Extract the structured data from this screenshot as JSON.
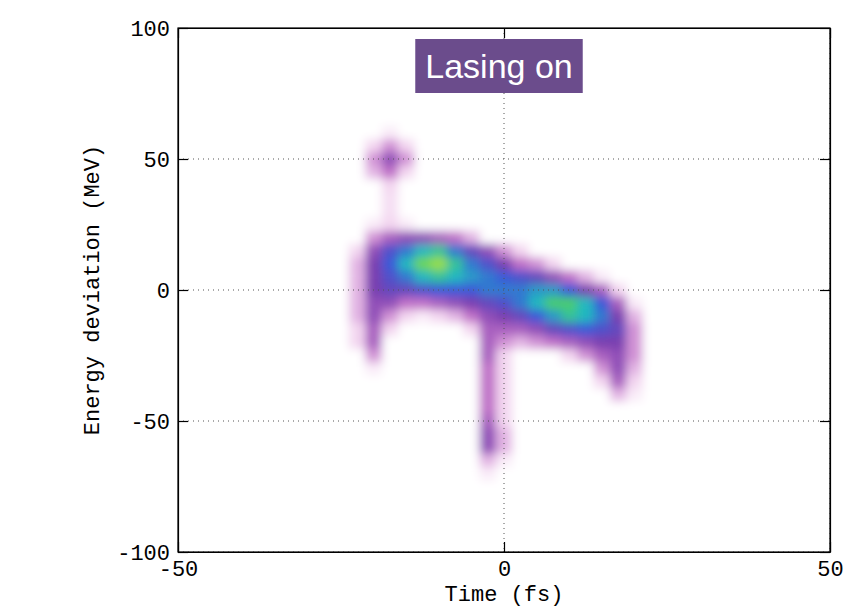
{
  "chart_data": {
    "type": "heatmap",
    "annotation": "Lasing on",
    "xlabel": "Time (fs)",
    "ylabel": "Energy deviation (MeV)",
    "xlim": [
      -50,
      50
    ],
    "ylim": [
      -100,
      100
    ],
    "xticks": [
      -50,
      0,
      50
    ],
    "yticks": [
      -100,
      -50,
      0,
      50,
      100
    ],
    "grid": true,
    "zlim": [
      0,
      1
    ],
    "x": [
      -25,
      -22.5,
      -20,
      -17.5,
      -15,
      -12.5,
      -10,
      -7.5,
      -5,
      -2.5,
      0,
      2.5,
      5,
      7.5,
      10,
      12.5,
      15,
      17.5,
      20,
      22.5,
      25
    ],
    "y": [
      60,
      55,
      50,
      45,
      40,
      35,
      30,
      25,
      20,
      15,
      10,
      5,
      0,
      -5,
      -10,
      -15,
      -20,
      -25,
      -30,
      -35,
      -40,
      -45,
      -50,
      -55,
      -60,
      -65,
      -70
    ],
    "z": [
      [
        0,
        0,
        0,
        0.05,
        0,
        0,
        0,
        0,
        0,
        0,
        0,
        0,
        0,
        0,
        0,
        0,
        0,
        0,
        0,
        0,
        0
      ],
      [
        0,
        0,
        0.1,
        0.2,
        0.1,
        0,
        0,
        0,
        0,
        0,
        0,
        0,
        0,
        0,
        0,
        0,
        0,
        0,
        0,
        0,
        0
      ],
      [
        0,
        0,
        0.2,
        0.35,
        0.2,
        0,
        0,
        0,
        0,
        0,
        0,
        0,
        0,
        0,
        0,
        0,
        0,
        0,
        0,
        0,
        0
      ],
      [
        0,
        0,
        0.15,
        0.25,
        0.1,
        0,
        0,
        0,
        0,
        0,
        0,
        0,
        0,
        0,
        0,
        0,
        0,
        0,
        0,
        0,
        0
      ],
      [
        0,
        0,
        0,
        0.1,
        0,
        0,
        0,
        0,
        0,
        0,
        0,
        0,
        0,
        0,
        0,
        0,
        0,
        0,
        0,
        0,
        0
      ],
      [
        0,
        0,
        0,
        0.08,
        0,
        0,
        0,
        0,
        0,
        0,
        0,
        0,
        0,
        0,
        0,
        0,
        0,
        0,
        0,
        0,
        0
      ],
      [
        0,
        0,
        0,
        0.08,
        0,
        0,
        0,
        0,
        0,
        0,
        0,
        0,
        0,
        0,
        0,
        0,
        0,
        0,
        0,
        0,
        0
      ],
      [
        0,
        0,
        0.05,
        0.1,
        0.05,
        0,
        0,
        0,
        0,
        0,
        0,
        0,
        0,
        0,
        0,
        0,
        0,
        0,
        0,
        0,
        0
      ],
      [
        0,
        0,
        0.2,
        0.3,
        0.35,
        0.35,
        0.3,
        0.25,
        0.15,
        0,
        0,
        0,
        0,
        0,
        0,
        0,
        0,
        0,
        0,
        0,
        0
      ],
      [
        0,
        0.1,
        0.35,
        0.5,
        0.6,
        0.7,
        0.75,
        0.6,
        0.45,
        0.35,
        0.2,
        0.1,
        0,
        0,
        0,
        0,
        0,
        0,
        0,
        0,
        0
      ],
      [
        0,
        0.15,
        0.4,
        0.55,
        0.7,
        0.85,
        0.9,
        0.75,
        0.6,
        0.5,
        0.4,
        0.25,
        0.2,
        0.1,
        0,
        0,
        0,
        0,
        0,
        0,
        0
      ],
      [
        0,
        0.15,
        0.4,
        0.5,
        0.6,
        0.7,
        0.75,
        0.7,
        0.65,
        0.6,
        0.55,
        0.5,
        0.45,
        0.35,
        0.25,
        0.15,
        0.05,
        0,
        0,
        0,
        0
      ],
      [
        0,
        0.15,
        0.4,
        0.45,
        0.45,
        0.5,
        0.55,
        0.55,
        0.55,
        0.6,
        0.6,
        0.6,
        0.65,
        0.65,
        0.55,
        0.4,
        0.3,
        0.1,
        0,
        0,
        0
      ],
      [
        0,
        0.15,
        0.35,
        0.35,
        0.25,
        0.25,
        0.3,
        0.35,
        0.4,
        0.45,
        0.5,
        0.6,
        0.7,
        0.8,
        0.8,
        0.7,
        0.55,
        0.3,
        0.05,
        0,
        0
      ],
      [
        0,
        0.15,
        0.35,
        0.2,
        0.1,
        0.05,
        0.1,
        0.15,
        0.25,
        0.35,
        0.4,
        0.45,
        0.55,
        0.65,
        0.75,
        0.7,
        0.6,
        0.4,
        0.15,
        0,
        0
      ],
      [
        0,
        0.1,
        0.3,
        0.1,
        0,
        0,
        0,
        0,
        0.1,
        0.3,
        0.3,
        0.3,
        0.35,
        0.45,
        0.5,
        0.55,
        0.5,
        0.45,
        0.2,
        0,
        0
      ],
      [
        0,
        0.1,
        0.3,
        0,
        0,
        0,
        0,
        0,
        0,
        0.3,
        0.2,
        0.15,
        0.2,
        0.25,
        0.3,
        0.35,
        0.4,
        0.4,
        0.2,
        0,
        0
      ],
      [
        0,
        0,
        0.2,
        0,
        0,
        0,
        0,
        0,
        0,
        0.3,
        0.1,
        0,
        0,
        0,
        0.1,
        0.2,
        0.3,
        0.35,
        0.2,
        0,
        0
      ],
      [
        0,
        0,
        0.05,
        0,
        0,
        0,
        0,
        0,
        0,
        0.25,
        0.1,
        0,
        0,
        0,
        0,
        0,
        0.2,
        0.35,
        0.15,
        0,
        0
      ],
      [
        0,
        0,
        0,
        0,
        0,
        0,
        0,
        0,
        0,
        0.25,
        0.1,
        0,
        0,
        0,
        0,
        0,
        0.1,
        0.3,
        0.1,
        0,
        0
      ],
      [
        0,
        0,
        0,
        0,
        0,
        0,
        0,
        0,
        0,
        0.25,
        0.1,
        0,
        0,
        0,
        0,
        0,
        0,
        0.15,
        0.05,
        0,
        0
      ],
      [
        0,
        0,
        0,
        0,
        0,
        0,
        0,
        0,
        0,
        0.25,
        0.1,
        0,
        0,
        0,
        0,
        0,
        0,
        0,
        0,
        0,
        0
      ],
      [
        0,
        0,
        0,
        0,
        0,
        0,
        0,
        0,
        0,
        0.3,
        0.1,
        0,
        0,
        0,
        0,
        0,
        0,
        0,
        0,
        0,
        0
      ],
      [
        0,
        0,
        0,
        0,
        0,
        0,
        0,
        0,
        0,
        0.35,
        0.15,
        0,
        0,
        0,
        0,
        0,
        0,
        0,
        0,
        0,
        0
      ],
      [
        0,
        0,
        0,
        0,
        0,
        0,
        0,
        0,
        0,
        0.35,
        0.15,
        0,
        0,
        0,
        0,
        0,
        0,
        0,
        0,
        0,
        0
      ],
      [
        0,
        0,
        0,
        0,
        0,
        0,
        0,
        0,
        0,
        0.15,
        0.05,
        0,
        0,
        0,
        0,
        0,
        0,
        0,
        0,
        0,
        0
      ],
      [
        0,
        0,
        0,
        0,
        0,
        0,
        0,
        0,
        0,
        0.05,
        0,
        0,
        0,
        0,
        0,
        0,
        0,
        0,
        0,
        0,
        0
      ]
    ]
  }
}
